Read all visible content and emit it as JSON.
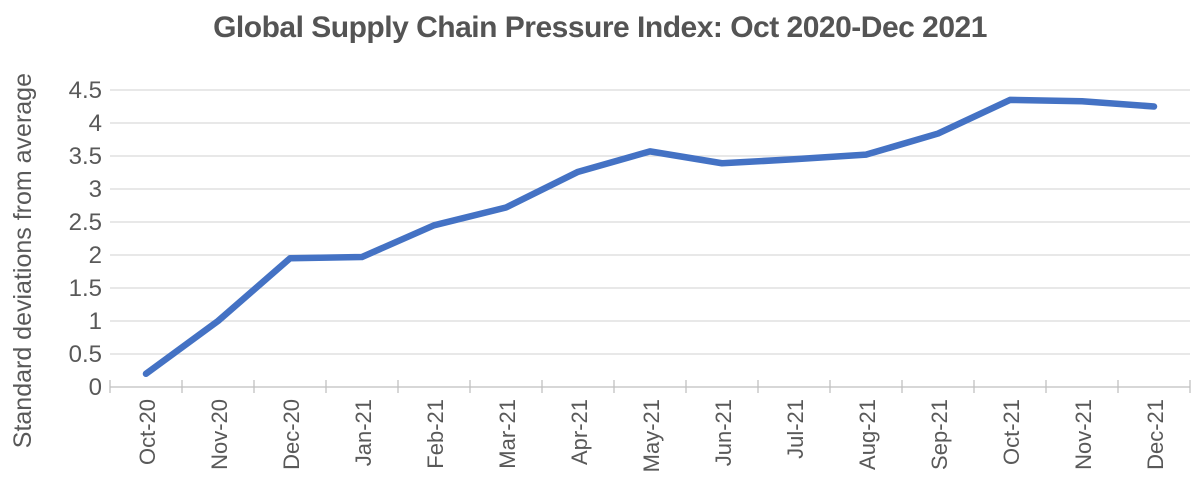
{
  "colors": {
    "line": "#4472C4",
    "grid": "#D9D9D9",
    "axis": "#BFBFBF",
    "text": "#595959",
    "title": "#545454"
  },
  "chart_data": {
    "type": "line",
    "title": "Global Supply Chain Pressure Index: Oct 2020-Dec 2021",
    "xlabel": "",
    "ylabel": "Standard deviations from average",
    "categories": [
      "Oct-20",
      "Nov-20",
      "Dec-20",
      "Jan-21",
      "Feb-21",
      "Mar-21",
      "Apr-21",
      "May-21",
      "Jun-21",
      "Jul-21",
      "Aug-21",
      "Sep-21",
      "Oct-21",
      "Nov-21",
      "Dec-21"
    ],
    "values": [
      0.2,
      1.0,
      1.95,
      1.97,
      2.45,
      2.72,
      3.26,
      3.57,
      3.39,
      3.45,
      3.52,
      3.84,
      4.35,
      4.33,
      4.25
    ],
    "ylim": [
      0,
      4.5
    ],
    "yticks": [
      0,
      0.5,
      1,
      1.5,
      2,
      2.5,
      3,
      3.5,
      4,
      4.5
    ],
    "grid": true,
    "legend": false,
    "series_name": "Global Supply Chain Pressure Index"
  }
}
